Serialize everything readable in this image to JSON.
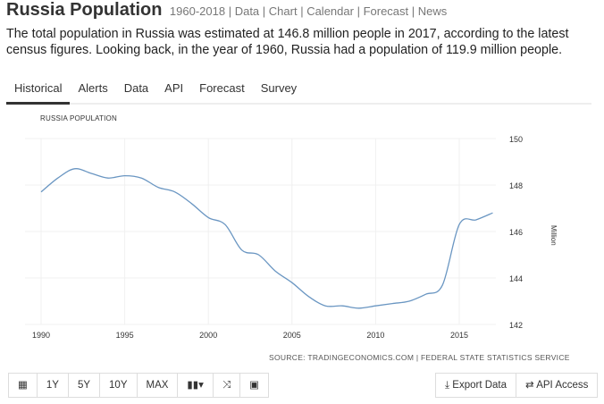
{
  "header": {
    "title": "Russia Population",
    "links": [
      "1960-2018",
      "Data",
      "Chart",
      "Calendar",
      "Forecast",
      "News"
    ]
  },
  "description": "The total population in Russia was estimated at 146.8 million people in 2017, according to the latest census figures. Looking back, in the year of 1960, Russia had a population of 119.9 million people.",
  "tabs": [
    {
      "label": "Historical",
      "active": true
    },
    {
      "label": "Alerts"
    },
    {
      "label": "Data"
    },
    {
      "label": "API"
    },
    {
      "label": "Forecast"
    },
    {
      "label": "Survey"
    }
  ],
  "chart_data": {
    "type": "line",
    "title": "RUSSIA POPULATION",
    "ylabel": "Million",
    "xlabel": "",
    "xlim": [
      1989.8,
      2017.5
    ],
    "ylim": [
      142,
      150
    ],
    "x_ticks": [
      "1990",
      "1995",
      "2000",
      "2005",
      "2010",
      "2015"
    ],
    "y_ticks": [
      "150",
      "148",
      "146",
      "144",
      "142"
    ],
    "grid": true,
    "y_axis_side": "right",
    "line_color": "#6a96c2",
    "x": [
      1990,
      1991,
      1992,
      1993,
      1994,
      1995,
      1996,
      1997,
      1998,
      1999,
      2000,
      2001,
      2002,
      2003,
      2004,
      2005,
      2006,
      2007,
      2008,
      2009,
      2010,
      2011,
      2012,
      2013,
      2014,
      2015,
      2016,
      2017
    ],
    "values": [
      147.7,
      148.3,
      148.7,
      148.5,
      148.3,
      148.4,
      148.3,
      147.9,
      147.7,
      147.2,
      146.6,
      146.3,
      145.2,
      145.0,
      144.3,
      143.8,
      143.2,
      142.8,
      142.8,
      142.7,
      142.8,
      142.9,
      143.0,
      143.3,
      143.7,
      146.3,
      146.5,
      146.8
    ],
    "source": "SOURCE: TRADINGECONOMICS.COM | FEDERAL STATE STATISTICS SERVICE"
  },
  "toolbar": {
    "buttons": [
      "1Y",
      "5Y",
      "10Y",
      "MAX"
    ],
    "export": "Export Data",
    "api": "API Access"
  }
}
